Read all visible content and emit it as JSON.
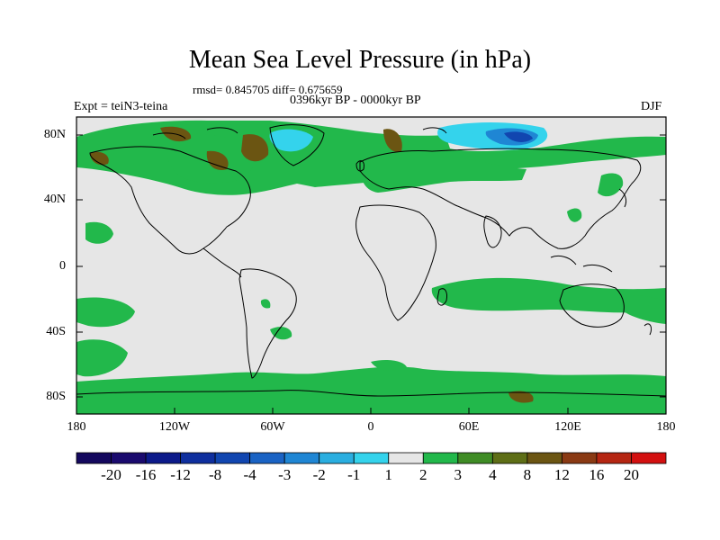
{
  "header": {
    "title": "Mean Sea Level Pressure (in hPa)",
    "stats": "rmsd= 0.845705 diff= 0.675659",
    "period": "0396kyr BP - 0000kyr BP",
    "experiment": "Expt = teiN3-teina",
    "season": "DJF"
  },
  "axes": {
    "lat_labels": [
      "80N",
      "40N",
      "0",
      "40S",
      "80S"
    ],
    "lon_labels": [
      "180",
      "120W",
      "60W",
      "0",
      "60E",
      "120E",
      "180"
    ]
  },
  "colorbar": {
    "labels": [
      "-20",
      "-16",
      "-12",
      "-8",
      "-4",
      "-3",
      "-2",
      "-1",
      "1",
      "2",
      "3",
      "4",
      "8",
      "12",
      "16",
      "20"
    ],
    "colors": [
      "#1a0a6e",
      "#0c1a8a",
      "#0f2f9e",
      "#1146b0",
      "#1a63c4",
      "#1f86d4",
      "#2aaee0",
      "#34d3ec",
      "#e6e6e6",
      "#22b84b",
      "#3f8c25",
      "#5e6e16",
      "#6b5512",
      "#8a3a14",
      "#b52612",
      "#d31010"
    ]
  },
  "map": {
    "background_color": "#e6e6e6",
    "positive_color": "#22b84b",
    "strong_positive_color": "#6b5512",
    "negative_color": "#34d3ec",
    "strong_negative_color": "#1146b0"
  }
}
